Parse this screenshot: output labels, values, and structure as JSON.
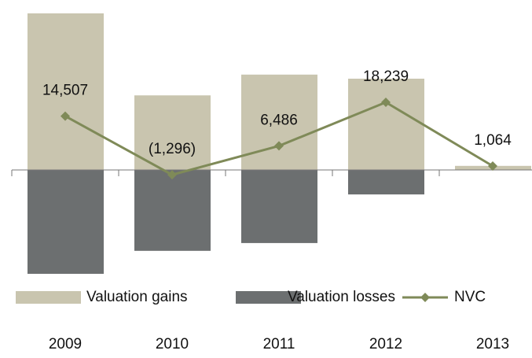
{
  "chart_data": {
    "type": "bar",
    "categories": [
      "2009",
      "2010",
      "2011",
      "2012",
      "2013"
    ],
    "series": [
      {
        "name": "Valuation gains",
        "type": "bar",
        "color": "#c9c5af",
        "values": [
          42200,
          20100,
          25700,
          24600,
          1100
        ]
      },
      {
        "name": "Valuation losses",
        "type": "bar",
        "color": "#6c6f70",
        "values": [
          -28000,
          -21800,
          -19700,
          -6600,
          0
        ]
      },
      {
        "name": "NVC",
        "type": "line",
        "color": "#7f8a58",
        "values": [
          14507,
          -1296,
          6486,
          18239,
          1064
        ],
        "value_labels": [
          "14,507",
          "(1,296)",
          "6,486",
          "18,239",
          "1,064"
        ]
      }
    ]
  }
}
